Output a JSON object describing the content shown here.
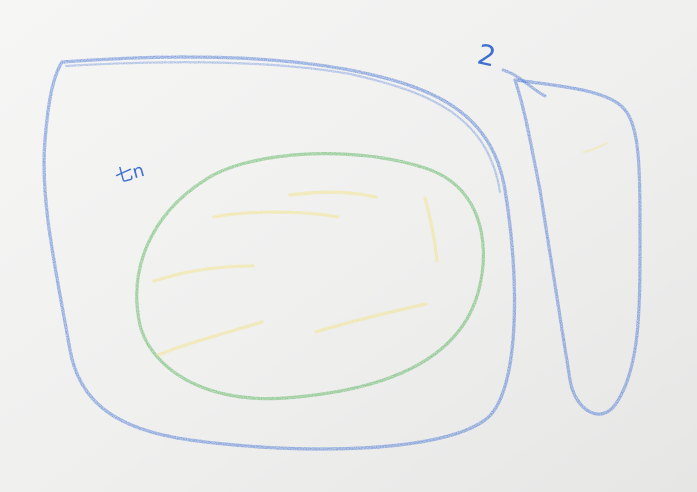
{
  "scene": {
    "description_free": true,
    "paper_color": "#f1f1f0",
    "shadow_color": "#b9b9b9",
    "colors": {
      "blue": "#3f6fd1",
      "green": "#4caf50",
      "yellow": "#f2e27a"
    },
    "text": {
      "label_top_right": "2",
      "label_left": "七n"
    }
  }
}
